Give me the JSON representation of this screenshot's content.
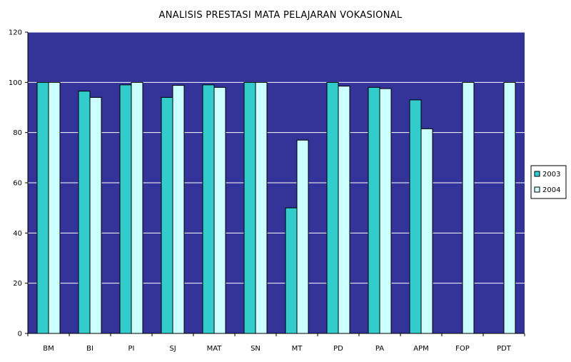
{
  "chart_data": {
    "type": "bar",
    "title": "ANALISIS PRESTASI MATA PELAJARAN VOKASIONAL",
    "xlabel": "",
    "ylabel": "",
    "categories": [
      "BM",
      "BI",
      "PI",
      "SJ",
      "MAT",
      "SN",
      "MT",
      "PD",
      "PA",
      "APM",
      "FOP",
      "PDT"
    ],
    "series": [
      {
        "name": "2003",
        "color": "#33cccc",
        "values": [
          100,
          96.5,
          99,
          94,
          99,
          100,
          50,
          100,
          98,
          93,
          null,
          null
        ]
      },
      {
        "name": "2004",
        "color": "#ccffff",
        "values": [
          100,
          94,
          100,
          98.8,
          98,
          100,
          77,
          98.5,
          97.5,
          81.5,
          100,
          100
        ]
      }
    ],
    "ylim": [
      0,
      120
    ],
    "yticks": [
      "0",
      "20",
      "40",
      "60",
      "80",
      "100",
      "120"
    ],
    "grid": true,
    "legend_position": "right",
    "plot_background": "#333399"
  }
}
